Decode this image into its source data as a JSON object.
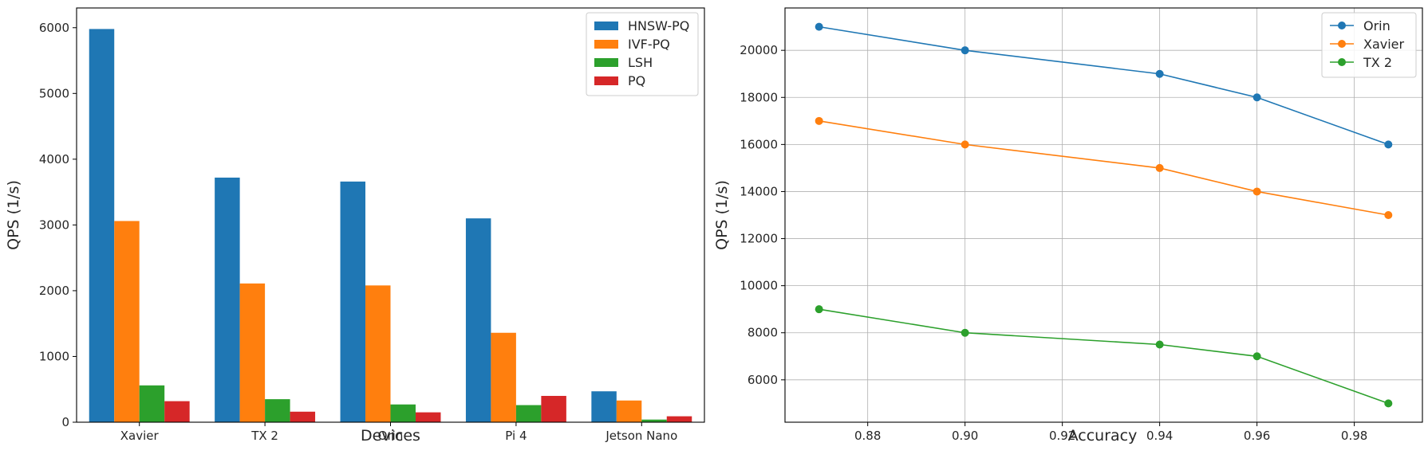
{
  "chart_data": [
    {
      "type": "bar",
      "title": "",
      "xlabel": "Devices",
      "ylabel": "QPS (1/s)",
      "categories": [
        "Xavier",
        "TX 2",
        "Orin",
        "Pi 4",
        "Jetson Nano"
      ],
      "ylim": [
        0,
        6300
      ],
      "yticks": [
        0,
        1000,
        2000,
        3000,
        4000,
        5000,
        6000
      ],
      "grid": false,
      "legend": "top-right",
      "series": [
        {
          "name": "HNSW-PQ",
          "color": "#1f77b4",
          "values": [
            5980,
            3720,
            3660,
            3100,
            470
          ]
        },
        {
          "name": "IVF-PQ",
          "color": "#ff7f0e",
          "values": [
            3060,
            2110,
            2080,
            1360,
            330
          ]
        },
        {
          "name": "LSH",
          "color": "#2ca02c",
          "values": [
            560,
            350,
            270,
            260,
            40
          ]
        },
        {
          "name": "PQ",
          "color": "#d62728",
          "values": [
            320,
            160,
            150,
            400,
            90
          ]
        }
      ]
    },
    {
      "type": "line",
      "title": "",
      "xlabel": "Accuracy",
      "ylabel": "QPS (1/s)",
      "x": [
        0.87,
        0.9,
        0.94,
        0.96,
        0.987
      ],
      "xlim": [
        0.863,
        0.994
      ],
      "ylim": [
        4200,
        21800
      ],
      "xticks": [
        "0.88",
        "0.90",
        "0.92",
        "0.94",
        "0.96",
        "0.98"
      ],
      "yticks": [
        6000,
        8000,
        10000,
        12000,
        14000,
        16000,
        18000,
        20000
      ],
      "grid": true,
      "legend": "top-right",
      "series": [
        {
          "name": "Orin",
          "color": "#1f77b4",
          "values": [
            21000,
            20000,
            19000,
            18000,
            16000
          ]
        },
        {
          "name": "Xavier",
          "color": "#ff7f0e",
          "values": [
            17000,
            16000,
            15000,
            14000,
            13000
          ]
        },
        {
          "name": "TX 2",
          "color": "#2ca02c",
          "values": [
            9000,
            8000,
            7500,
            7000,
            5000
          ]
        }
      ]
    }
  ]
}
